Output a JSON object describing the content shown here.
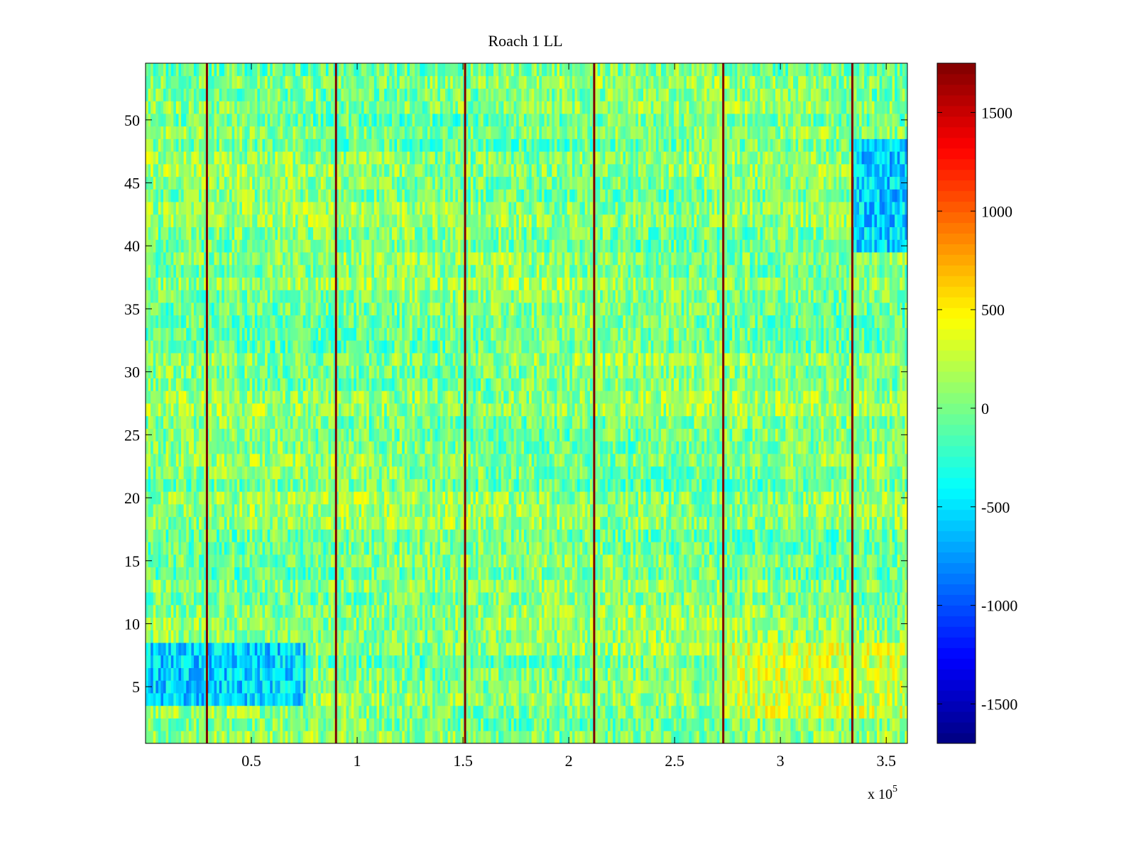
{
  "chart_data": {
    "type": "heatmap",
    "title": "Roach 1 LL",
    "xlabel": "",
    "ylabel": "",
    "x_exponent_label": "x 10",
    "x_exponent_sup": "5",
    "xlim": [
      0,
      3.6
    ],
    "ylim": [
      0.5,
      54.5
    ],
    "x_ticks": [
      0.5,
      1,
      1.5,
      2,
      2.5,
      3,
      3.5
    ],
    "x_tick_labels": [
      "0.5",
      "1",
      "1.5",
      "2",
      "2.5",
      "3",
      "3.5"
    ],
    "y_ticks": [
      5,
      10,
      15,
      20,
      25,
      30,
      35,
      40,
      45,
      50
    ],
    "y_tick_labels": [
      "5",
      "10",
      "15",
      "20",
      "25",
      "30",
      "35",
      "40",
      "45",
      "50"
    ],
    "rows": 54,
    "colormap": "jet",
    "clim": [
      -1700,
      1750
    ],
    "colorbar_ticks": [
      1500,
      1000,
      500,
      0,
      -500,
      -1000,
      -1500
    ],
    "colorbar_tick_labels": [
      "1500",
      "1000",
      "500",
      "0",
      "-500",
      "-1000",
      "-1500"
    ],
    "vertical_lines_x": [
      0.29,
      0.9,
      1.51,
      2.12,
      2.73,
      3.34
    ],
    "vertical_line_color": "#7f0000",
    "regions": [
      {
        "name": "low blue patch",
        "x_range": [
          0,
          0.29
        ],
        "y_range": [
          3.5,
          7
        ],
        "value": -1000
      },
      {
        "name": "low cyan patch",
        "x_range": [
          0,
          0.75
        ],
        "y_range": [
          3.5,
          8
        ],
        "value": -550
      },
      {
        "name": "bright right patch",
        "x_range": [
          2.73,
          3.6
        ],
        "y_range": [
          3,
          8
        ],
        "value": 280
      },
      {
        "name": "blue right edge",
        "x_range": [
          3.34,
          3.6
        ],
        "y_range": [
          40,
          48
        ],
        "value": -550
      }
    ],
    "grid": false,
    "legend": "none"
  }
}
